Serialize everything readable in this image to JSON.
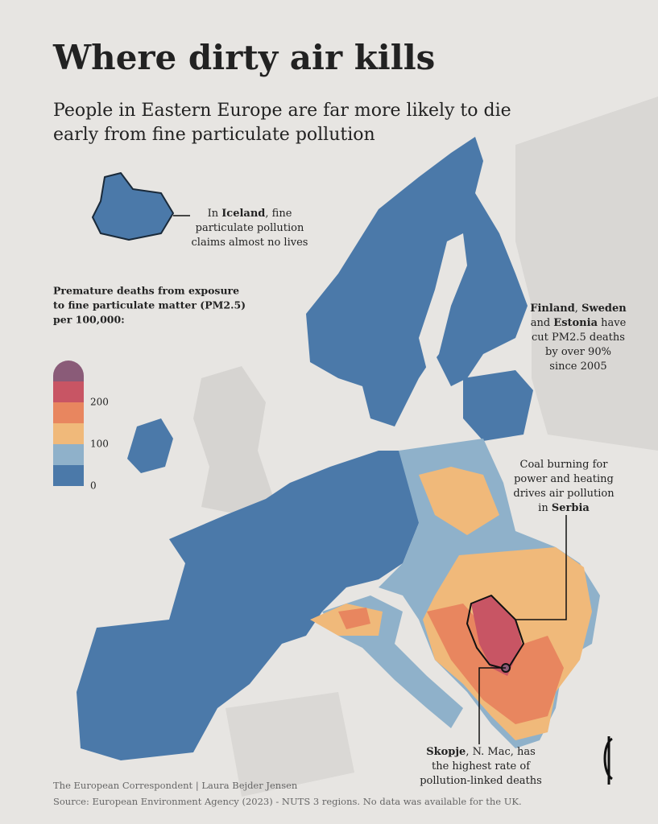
{
  "title": "Where dirty air kills",
  "subtitle": [
    "People in Eastern Europe are far more likely to die",
    "early from fine particulate pollution"
  ],
  "annotations": [
    {
      "lines": [
        "In Iceland, fine",
        "particulate pollution",
        "claims almost no lives"
      ],
      "bold": [
        "Iceland"
      ]
    },
    {
      "lines": [
        "Finland, Sweden",
        "and Estonia have",
        "cut PM2.5 deaths",
        "by over 90%",
        "since 2005"
      ],
      "bold": [
        "Finland",
        "Sweden",
        "Estonia"
      ]
    },
    {
      "lines": [
        "Coal burning for",
        "power and heating",
        "drives air pollution",
        "in Serbia"
      ],
      "bold": [
        "Serbia"
      ]
    },
    {
      "lines": [
        "Skopje, N. Mac, has",
        "the highest rate of",
        "pollution-linked deaths"
      ],
      "bold": [
        "Skopje"
      ]
    }
  ],
  "legend": {
    "title": [
      "Premature deaths from exposure",
      "to fine particulate matter (PM2.5)",
      "per 100,000:"
    ],
    "ticks": [
      0,
      100,
      200
    ],
    "colors": [
      "#4b79a9",
      "#8fb1ca",
      "#f0b97a",
      "#e8865f",
      "#c85564",
      "#8a5b78"
    ]
  },
  "footer": [
    "The European Correspondent | Laura Bejder Jensen",
    "Source: European Environment Agency (2023) - NUTS 3 regions. No data was available for the UK."
  ]
}
